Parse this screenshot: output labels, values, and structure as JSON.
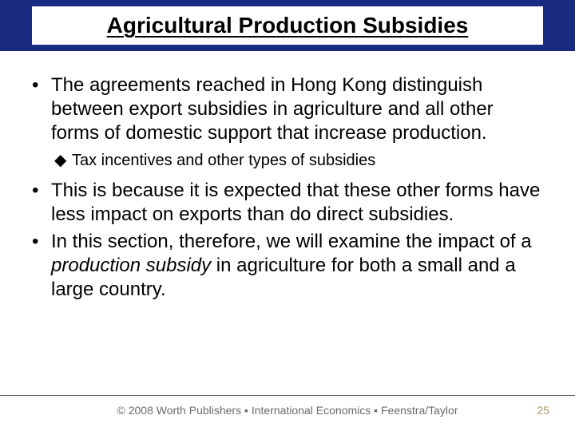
{
  "title": "Agricultural Production Subsidies",
  "bullets": {
    "b1": "The agreements reached in Hong Kong distinguish between export subsidies in agriculture and all other forms of domestic support that increase production.",
    "sub1": "Tax incentives and other types of subsidies",
    "b2": "This is because it is expected that these other forms have less impact on exports than do direct subsidies.",
    "b3_pre": "In this section, therefore, we will examine the impact of a ",
    "b3_italic": "production subsidy",
    "b3_post": " in agriculture for both a small and a large country."
  },
  "footer": "© 2008 Worth Publishers ▪ International Economics ▪ Feenstra/Taylor",
  "page": "25",
  "colors": {
    "title_bg": "#192a81",
    "page_num": "#a7996a",
    "footer_text": "#6b6b6b"
  },
  "fontsizes": {
    "title": 28,
    "body": 24,
    "sub": 20,
    "footer": 14
  }
}
